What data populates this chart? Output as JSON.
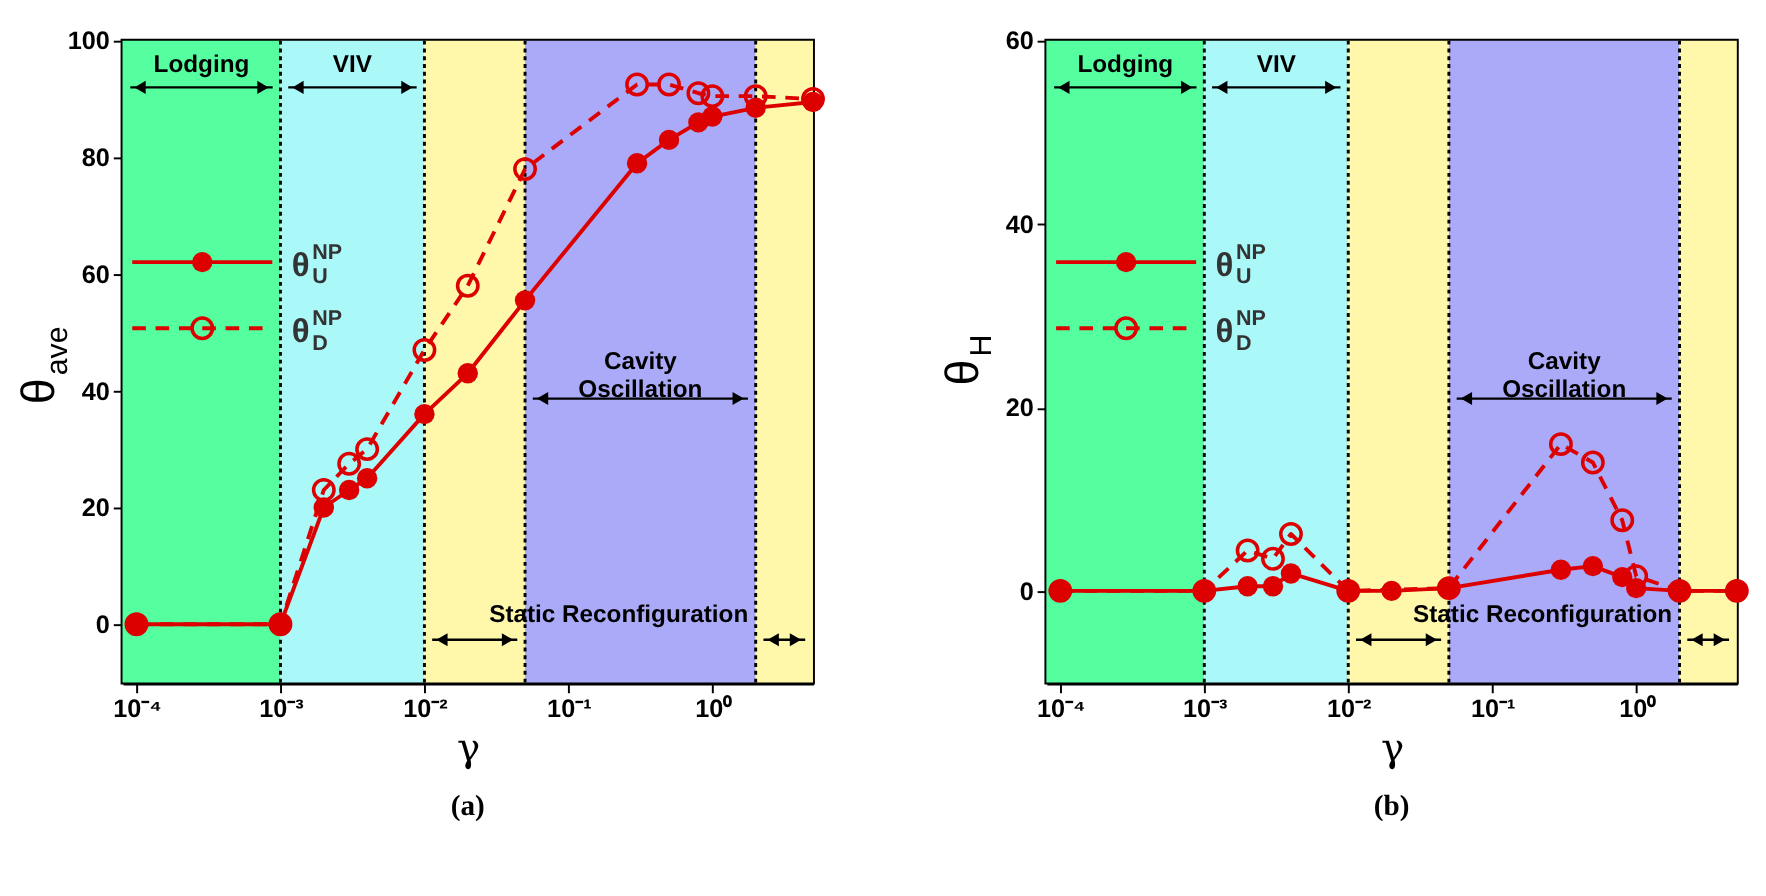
{
  "chart_data": [
    {
      "type": "line",
      "title": "(a)",
      "xlabel": "γ",
      "ylabel": "θ$_{ave}$",
      "log": "x",
      "legend": "left",
      "marker": "circle",
      "xlim": [
        8e-05,
        5
      ],
      "xticks": [
        {
          "value": 0.0001,
          "label": "10⁻⁴"
        },
        {
          "value": 0.001,
          "label": "10⁻³"
        },
        {
          "value": 0.01,
          "label": "10⁻²"
        },
        {
          "value": 0.1,
          "label": "10⁻¹"
        },
        {
          "value": 1,
          "label": "10⁰"
        }
      ],
      "ylim": [
        -10,
        100
      ],
      "yticks": [
        0,
        20,
        40,
        60,
        80,
        100
      ],
      "x": [
        0.0001,
        0.001,
        0.002,
        0.003,
        0.004,
        0.01,
        0.02,
        0.05,
        0.3,
        0.5,
        0.8,
        1,
        2,
        5
      ],
      "series": [
        {
          "name": "θ$^{NP}$$_{U}$",
          "color": "#dd0000",
          "line_style": "solid",
          "values": [
            0,
            0,
            20,
            23,
            25,
            36,
            43,
            55.5,
            79,
            83,
            86,
            87,
            88.5,
            89.5
          ]
        },
        {
          "name": "θ$^{NP}$$_{D}$",
          "color": "#dd0000",
          "line_style": "dashed",
          "values": [
            0,
            0,
            23,
            27.5,
            30,
            47,
            58,
            78,
            92.5,
            92.5,
            91,
            90.5,
            90.5,
            90
          ]
        }
      ],
      "bands": [
        {
          "axis": "x",
          "from": 8e-05,
          "to": 0.001,
          "color": "#55ffa0",
          "label": "Lodging"
        },
        {
          "axis": "x",
          "from": 0.001,
          "to": 0.01,
          "color": "#aaf8f8",
          "label": "VIV"
        },
        {
          "axis": "x",
          "from": 0.01,
          "to": 0.05,
          "color": "#fff8aa",
          "label": "Static Reconfiguration"
        },
        {
          "axis": "x",
          "from": 0.05,
          "to": 2,
          "color": "#aaaaf8",
          "label": "Cavity\nOscillation"
        },
        {
          "axis": "x",
          "from": 2,
          "to": 5,
          "color": "#fff8aa"
        }
      ],
      "ref_lines": [
        {
          "axis": "x",
          "value": 0.001,
          "line_style": "dotted"
        },
        {
          "axis": "x",
          "value": 0.01,
          "line_style": "dotted"
        },
        {
          "axis": "x",
          "value": 0.05,
          "line_style": "dotted"
        },
        {
          "axis": "x",
          "value": 2,
          "line_style": "dotted"
        }
      ]
    },
    {
      "type": "line",
      "title": "(b)",
      "xlabel": "γ",
      "ylabel": "θ$_{H}$",
      "log": "x",
      "legend": "left",
      "marker": "circle",
      "xlim": [
        8e-05,
        5
      ],
      "xticks": [
        {
          "value": 0.0001,
          "label": "10⁻⁴"
        },
        {
          "value": 0.001,
          "label": "10⁻³"
        },
        {
          "value": 0.01,
          "label": "10⁻²"
        },
        {
          "value": 0.1,
          "label": "10⁻¹"
        },
        {
          "value": 1,
          "label": "10⁰"
        }
      ],
      "ylim": [
        -10,
        60
      ],
      "yticks": [
        0,
        20,
        40,
        60
      ],
      "x": [
        0.0001,
        0.001,
        0.002,
        0.003,
        0.004,
        0.01,
        0.02,
        0.05,
        0.3,
        0.5,
        0.8,
        1,
        2,
        5
      ],
      "series": [
        {
          "name": "θ$^{NP}$$_{U}$",
          "color": "#dd0000",
          "line_style": "solid",
          "values": [
            0,
            0,
            0.5,
            0.5,
            1.9,
            0,
            0,
            0.3,
            2.3,
            2.7,
            1.5,
            0.3,
            0,
            0
          ]
        },
        {
          "name": "θ$^{NP}$$_{D}$",
          "color": "#dd0000",
          "line_style": "dashed",
          "values": [
            0,
            0,
            4.4,
            3.5,
            6.2,
            0,
            null,
            0.3,
            16,
            14,
            7.7,
            1.6,
            0,
            0
          ]
        }
      ],
      "bands": [
        {
          "axis": "x",
          "from": 8e-05,
          "to": 0.001,
          "color": "#55ffa0",
          "label": "Lodging"
        },
        {
          "axis": "x",
          "from": 0.001,
          "to": 0.01,
          "color": "#aaf8f8",
          "label": "VIV"
        },
        {
          "axis": "x",
          "from": 0.01,
          "to": 0.05,
          "color": "#fff8aa",
          "label": "Static Reconfiguration"
        },
        {
          "axis": "x",
          "from": 0.05,
          "to": 2,
          "color": "#aaaaf8",
          "label": "Cavity\nOscillation"
        },
        {
          "axis": "x",
          "from": 2,
          "to": 5,
          "color": "#fff8aa"
        }
      ],
      "ref_lines": [
        {
          "axis": "x",
          "value": 0.001,
          "line_style": "dotted"
        },
        {
          "axis": "x",
          "value": 0.01,
          "line_style": "dotted"
        },
        {
          "axis": "x",
          "value": 0.05,
          "line_style": "dotted"
        },
        {
          "axis": "x",
          "value": 2,
          "line_style": "dotted"
        }
      ]
    }
  ]
}
